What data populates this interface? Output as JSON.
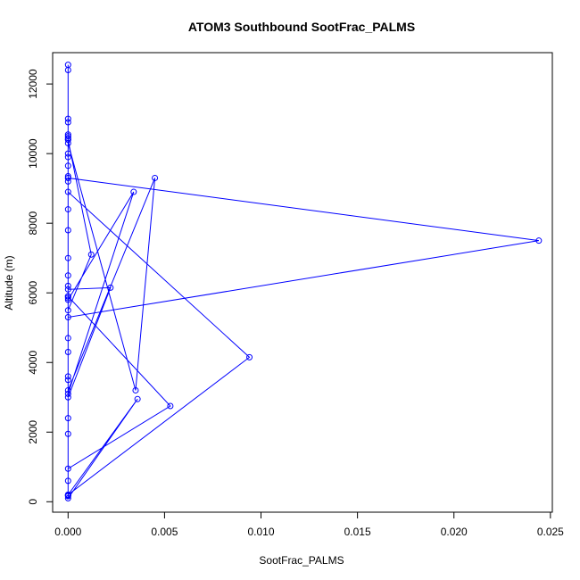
{
  "chart_data": {
    "type": "line",
    "title": "ATOM3 Southbound SootFrac_PALMS",
    "xlabel": "SootFrac_PALMS",
    "ylabel": "Altitude (m)",
    "xlim": [
      -0.0008,
      0.0251
    ],
    "ylim": [
      -300,
      12900
    ],
    "xticks": [
      0.0,
      0.005,
      0.01,
      0.015,
      0.02,
      0.025
    ],
    "xtick_labels": [
      "0.000",
      "0.005",
      "0.010",
      "0.015",
      "0.020",
      "0.025"
    ],
    "yticks": [
      0,
      2000,
      4000,
      6000,
      8000,
      10000,
      12000
    ],
    "ytick_labels": [
      "0",
      "2000",
      "4000",
      "6000",
      "8000",
      "10000",
      "12000"
    ],
    "grid": false,
    "color": "#0000ff",
    "series": [
      {
        "x": [
          0,
          0,
          0,
          0,
          0,
          0,
          0,
          0,
          0,
          0,
          0,
          0,
          0,
          0,
          0,
          0,
          0,
          0,
          0,
          0,
          0.0012,
          0,
          0,
          0,
          0.0022,
          0,
          0,
          0,
          0.0034,
          0,
          0,
          0.0045,
          0.0035,
          0,
          0,
          0.0094,
          0,
          0,
          0,
          0.0053,
          0,
          0,
          0,
          0.0036,
          0,
          0,
          0.0244,
          0,
          0,
          0,
          0,
          0,
          0,
          0,
          0
        ],
        "y": [
          12550,
          12400,
          11000,
          10900,
          10550,
          10500,
          10450,
          10400,
          10000,
          9900,
          9650,
          9350,
          9300,
          9200,
          8400,
          7800,
          7000,
          6200,
          5900,
          5500,
          7100,
          10400,
          6500,
          3000,
          6150,
          6100,
          5850,
          5800,
          8900,
          3100,
          3200,
          9300,
          3200,
          10300,
          8900,
          4150,
          200,
          180,
          5900,
          2750,
          950,
          160,
          100,
          2950,
          200,
          5300,
          7500,
          9300,
          4700,
          4300,
          3600,
          3500,
          2400,
          1950,
          600
        ]
      }
    ]
  }
}
